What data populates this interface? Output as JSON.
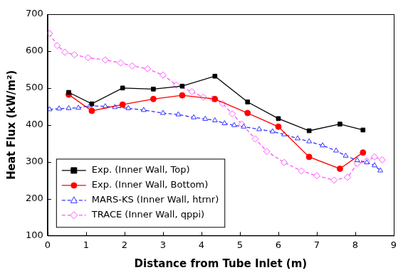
{
  "chart_data": {
    "type": "line",
    "x_label": "Distance from Tube Inlet (m)",
    "y_label": "Heat Flux (kW/m²)",
    "xlim": [
      0,
      9
    ],
    "xticks": [
      0,
      1,
      2,
      3,
      4,
      5,
      6,
      7,
      8,
      9
    ],
    "ylim": [
      100,
      700
    ],
    "yticks": [
      100,
      200,
      300,
      400,
      500,
      600,
      700
    ],
    "grid": false,
    "legend": "lower left",
    "series": [
      {
        "name": "Exp. (Inner Wall, Top)",
        "color": "#000000",
        "marker": "square",
        "line_style": "solid",
        "x": [
          0.55,
          1.15,
          1.95,
          2.75,
          3.5,
          4.35,
          5.2,
          6.0,
          6.8,
          7.6,
          8.2
        ],
        "values": [
          488,
          457,
          500,
          497,
          505,
          532,
          462,
          417,
          384,
          402,
          386
        ]
      },
      {
        "name": "Exp. (Inner Wall, Bottom)",
        "color": "#ff0000",
        "marker": "circle",
        "line_style": "solid",
        "x": [
          0.55,
          1.15,
          1.95,
          2.75,
          3.5,
          4.35,
          5.2,
          6.0,
          6.8,
          7.6,
          8.2
        ],
        "values": [
          482,
          438,
          455,
          470,
          480,
          470,
          432,
          395,
          313,
          281,
          325
        ]
      },
      {
        "name": "MARS-KS (Inner Wall, htrnr)",
        "color": "#3333ff",
        "marker": "open_triangle",
        "line_style": "dashed",
        "x": [
          0.05,
          0.3,
          0.55,
          0.8,
          1.1,
          1.5,
          1.75,
          2.1,
          2.5,
          3.0,
          3.4,
          3.8,
          4.1,
          4.35,
          4.6,
          4.85,
          5.1,
          5.5,
          5.85,
          6.15,
          6.5,
          6.8,
          7.15,
          7.5,
          7.75,
          8.05,
          8.3,
          8.5,
          8.65
        ],
        "values": [
          442,
          444,
          445,
          446,
          452,
          450,
          448,
          445,
          440,
          432,
          428,
          420,
          416,
          412,
          404,
          399,
          395,
          388,
          382,
          374,
          363,
          355,
          344,
          330,
          316,
          304,
          298,
          290,
          276
        ]
      },
      {
        "name": "TRACE (Inner Wall, qppi)",
        "color": "#ff55ff",
        "marker": "open_diamond",
        "line_style": "dashed",
        "x": [
          0.05,
          0.25,
          0.45,
          0.7,
          1.05,
          1.5,
          1.9,
          2.2,
          2.6,
          3.0,
          3.35,
          3.75,
          4.05,
          4.3,
          4.55,
          4.8,
          5.05,
          5.4,
          5.7,
          6.15,
          6.6,
          7.0,
          7.45,
          7.8,
          8.05,
          8.3,
          8.5,
          8.7
        ],
        "values": [
          648,
          615,
          597,
          590,
          582,
          576,
          568,
          560,
          552,
          535,
          508,
          490,
          475,
          470,
          458,
          430,
          402,
          362,
          328,
          298,
          275,
          262,
          250,
          258,
          295,
          302,
          313,
          305
        ]
      }
    ]
  }
}
